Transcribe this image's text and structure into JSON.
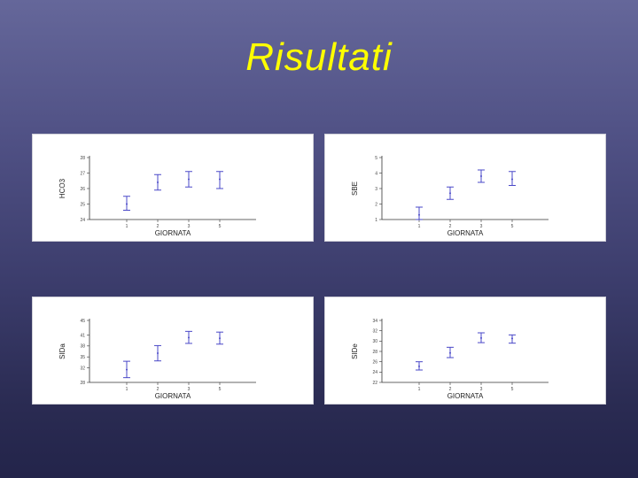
{
  "slide": {
    "title": "Risultati"
  },
  "chart_data": [
    {
      "type": "scatter",
      "title": "",
      "xlabel": "GIORNATA",
      "ylabel": "HCO3",
      "categories": [
        "1",
        "2",
        "3",
        "5"
      ],
      "ylim": [
        24,
        28
      ],
      "yticks": [
        24,
        25,
        26,
        27,
        28
      ],
      "means": [
        25.0,
        26.4,
        26.6,
        26.6
      ],
      "lower": [
        24.6,
        25.9,
        26.1,
        26.0
      ],
      "upper": [
        25.5,
        26.9,
        27.1,
        27.1
      ],
      "error_color": "#4a48c8"
    },
    {
      "type": "scatter",
      "title": "",
      "xlabel": "GIORNATA",
      "ylabel": "SBE",
      "categories": [
        "1",
        "2",
        "3",
        "5"
      ],
      "ylim": [
        1,
        5
      ],
      "yticks": [
        1,
        2,
        3,
        4,
        5
      ],
      "means": [
        1.3,
        2.7,
        3.8,
        3.6
      ],
      "lower": [
        1.0,
        2.3,
        3.4,
        3.2
      ],
      "upper": [
        1.8,
        3.1,
        4.2,
        4.1
      ],
      "error_color": "#4a48c8"
    },
    {
      "type": "scatter",
      "title": "",
      "xlabel": "GIORNATA",
      "ylabel": "SIDa",
      "categories": [
        "1",
        "2",
        "3",
        "5"
      ],
      "ylim": [
        28,
        45
      ],
      "yticks": [
        28,
        32,
        35,
        38,
        41,
        45
      ],
      "means": [
        31.5,
        36.0,
        40.3,
        40.1
      ],
      "lower": [
        29.3,
        33.9,
        38.7,
        38.5
      ],
      "upper": [
        33.8,
        38.1,
        42.0,
        41.8
      ],
      "error_color": "#4a48c8"
    },
    {
      "type": "scatter",
      "title": "",
      "xlabel": "GIORNATA",
      "ylabel": "SIDe",
      "categories": [
        "1",
        "2",
        "3",
        "5"
      ],
      "ylim": [
        22,
        34
      ],
      "yticks": [
        22,
        24,
        26,
        28,
        30,
        32,
        34
      ],
      "means": [
        25.1,
        27.7,
        30.6,
        30.5
      ],
      "lower": [
        24.4,
        26.8,
        29.7,
        29.6
      ],
      "upper": [
        26.0,
        28.8,
        31.6,
        31.2
      ],
      "error_color": "#4a48c8"
    }
  ]
}
